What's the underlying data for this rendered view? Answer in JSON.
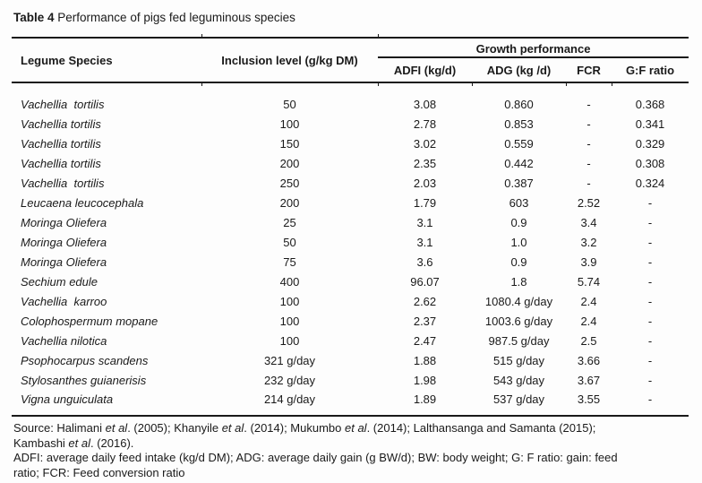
{
  "caption": {
    "label": "Table 4",
    "text": " Performance of pigs fed leguminous species"
  },
  "table": {
    "headers": {
      "legume_species": "Legume Species",
      "inclusion_level": "Inclusion level (g/kg DM)",
      "group": "Growth performance",
      "sub": [
        "ADFI (kg/d)",
        "ADG (kg /d)",
        "FCR",
        "G:F ratio"
      ]
    },
    "rows": [
      {
        "species": "Vachellia  tortilis",
        "inclusion": "50",
        "adfi": "3.08",
        "adg": "0.860",
        "fcr": "-",
        "gf": "0.368"
      },
      {
        "species": "Vachellia tortilis",
        "inclusion": "100",
        "adfi": "2.78",
        "adg": "0.853",
        "fcr": "-",
        "gf": "0.341"
      },
      {
        "species": "Vachellia tortilis",
        "inclusion": "150",
        "adfi": "3.02",
        "adg": "0.559",
        "fcr": "-",
        "gf": "0.329"
      },
      {
        "species": "Vachellia tortilis",
        "inclusion": "200",
        "adfi": "2.35",
        "adg": "0.442",
        "fcr": "-",
        "gf": "0.308"
      },
      {
        "species": "Vachellia  tortilis",
        "inclusion": "250",
        "adfi": "2.03",
        "adg": "0.387",
        "fcr": "-",
        "gf": "0.324"
      },
      {
        "species": "Leucaena leucocephala",
        "inclusion": "200",
        "adfi": "1.79",
        "adg": "603",
        "fcr": "2.52",
        "gf": "-"
      },
      {
        "species": "Moringa Oliefera",
        "inclusion": "25",
        "adfi": "3.1",
        "adg": "0.9",
        "fcr": "3.4",
        "gf": "-"
      },
      {
        "species": "Moringa Oliefera",
        "inclusion": "50",
        "adfi": "3.1",
        "adg": "1.0",
        "fcr": "3.2",
        "gf": "-"
      },
      {
        "species": "Moringa Oliefera",
        "inclusion": "75",
        "adfi": "3.6",
        "adg": "0.9",
        "fcr": "3.9",
        "gf": "-"
      },
      {
        "species": "Sechium edule",
        "inclusion": "400",
        "adfi": "96.07",
        "adg": "1.8",
        "fcr": "5.74",
        "gf": "-"
      },
      {
        "species": "Vachellia  karroo",
        "inclusion": "100",
        "adfi": "2.62",
        "adg": "1080.4 g/day",
        "fcr": "2.4",
        "gf": "-"
      },
      {
        "species": "Colophospermum mopane",
        "inclusion": "100",
        "adfi": "2.37",
        "adg": "1003.6 g/day",
        "fcr": "2.4",
        "gf": "-"
      },
      {
        "species": "Vachellia nilotica",
        "inclusion": "100",
        "adfi": "2.47",
        "adg": "987.5 g/day",
        "fcr": "2.5",
        "gf": "-"
      },
      {
        "species": "Psophocarpus scandens",
        "inclusion": "321 g/day",
        "adfi": "1.88",
        "adg": "515 g/day",
        "fcr": "3.66",
        "gf": "-"
      },
      {
        "species": "Stylosanthes guianerisis",
        "inclusion": "232 g/day",
        "adfi": "1.98",
        "adg": "543 g/day",
        "fcr": "3.67",
        "gf": "-"
      },
      {
        "species": "Vigna unguiculata",
        "inclusion": "214 g/day",
        "adfi": "1.89",
        "adg": "537 g/day",
        "fcr": "3.55",
        "gf": "-"
      }
    ]
  },
  "footer": {
    "source_line1": [
      {
        "t": "Source: Halimani "
      },
      {
        "t": "et al",
        "i": true
      },
      {
        "t": ". (2005); Khanyile "
      },
      {
        "t": "et al",
        "i": true
      },
      {
        "t": ". (2014); Mukumbo "
      },
      {
        "t": "et al",
        "i": true
      },
      {
        "t": ". (2014); Lalthansanga and Samanta (2015);"
      }
    ],
    "source_line2": [
      {
        "t": "Kambashi "
      },
      {
        "t": "et al",
        "i": true
      },
      {
        "t": ". (2016)."
      }
    ],
    "abbr_line1": "ADFI: average daily feed intake (kg/d DM); ADG: average daily gain (g BW/d); BW: body weight; G: F ratio: gain: feed",
    "abbr_line2": "ratio; FCR: Feed conversion ratio"
  }
}
